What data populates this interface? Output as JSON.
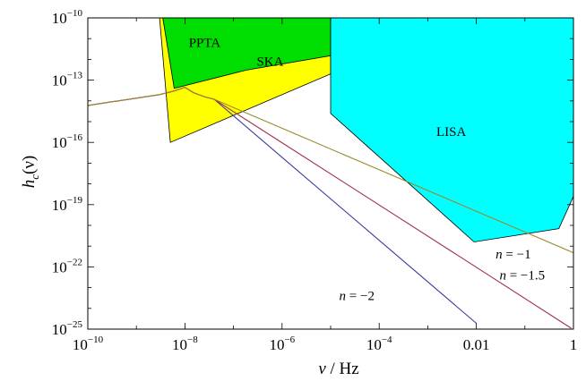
{
  "chart_data": {
    "type": "line",
    "xlabel": {
      "var": "ν",
      "sep": " / ",
      "unit": "Hz"
    },
    "ylabel": {
      "base": "h",
      "sub": "c",
      "arg": "(ν)"
    },
    "xscale": "log",
    "yscale": "log",
    "xlim": [
      1e-10,
      1
    ],
    "ylim": [
      1e-25,
      1e-10
    ],
    "grid": false,
    "legend": "none",
    "x_ticks": [
      {
        "value": 1e-10,
        "mantissa": "10",
        "exponent": "−10"
      },
      {
        "value": 1e-08,
        "mantissa": "10",
        "exponent": "−8"
      },
      {
        "value": 1e-06,
        "mantissa": "10",
        "exponent": "−6"
      },
      {
        "value": 0.0001,
        "mantissa": "10",
        "exponent": "−4"
      },
      {
        "value": 0.01,
        "plain": "0.01"
      },
      {
        "value": 1,
        "plain": "1"
      }
    ],
    "y_ticks": [
      {
        "value": 1e-10,
        "mantissa": "10",
        "exponent": "−10"
      },
      {
        "value": 1e-13,
        "mantissa": "10",
        "exponent": "−13"
      },
      {
        "value": 1e-16,
        "mantissa": "10",
        "exponent": "−16"
      },
      {
        "value": 1e-19,
        "mantissa": "10",
        "exponent": "−19"
      },
      {
        "value": 1e-22,
        "mantissa": "10",
        "exponent": "−22"
      },
      {
        "value": 1e-25,
        "mantissa": "10",
        "exponent": "−25"
      }
    ],
    "regions": [
      {
        "name": "SKA",
        "label": "SKA",
        "color": "#ffff00",
        "label_at": [
          3e-07,
          5e-13
        ],
        "polygon": [
          [
            3e-09,
            1e-10
          ],
          [
            1e-05,
            1e-10
          ],
          [
            1e-05,
            2e-13
          ],
          [
            5e-09,
            1e-16
          ]
        ]
      },
      {
        "name": "PPTA",
        "label": "PPTA",
        "color": "#00dd00",
        "label_at": [
          1.2e-08,
          4e-12
        ],
        "polygon": [
          [
            3.5e-09,
            1e-10
          ],
          [
            1e-05,
            1e-10
          ],
          [
            1e-05,
            1.5e-12
          ],
          [
            1.8e-07,
            3e-13
          ],
          [
            6e-09,
            4e-14
          ]
        ]
      },
      {
        "name": "LISA",
        "label": "LISA",
        "color": "#00ffff",
        "label_at": [
          0.0015,
          2e-16
        ],
        "polygon": [
          [
            1e-05,
            1e-10
          ],
          [
            1,
            1e-10
          ],
          [
            1,
            2.5e-19
          ],
          [
            0.5,
            7e-21
          ],
          [
            0.009,
            1.6e-21
          ],
          [
            1e-05,
            2.5e-15
          ]
        ]
      }
    ],
    "series": [
      {
        "label": "n = −2",
        "label_parts": {
          "var": "n",
          "op": " = ",
          "val": "−2"
        },
        "label_at": [
          1.5e-05,
          2.5e-24
        ],
        "color": "#3c3ca0",
        "x": [
          1e-10,
          3e-09,
          6e-09,
          1e-08,
          1.5e-08,
          2.5e-08,
          4e-08,
          1e-06,
          0.0001,
          0.01
        ],
        "y": [
          6e-15,
          2e-14,
          3e-14,
          4.5e-14,
          2.5e-14,
          1.6e-14,
          1.2e-14,
          1.9e-17,
          1.9e-21,
          1.9e-25
        ]
      },
      {
        "label": "n = −1.5",
        "label_parts": {
          "var": "n",
          "op": " = ",
          "val": "−1.5"
        },
        "label_at": [
          0.03,
          2.5e-23
        ],
        "color": "#a03050",
        "x": [
          1e-10,
          3e-09,
          6e-09,
          1e-08,
          1.5e-08,
          2.5e-08,
          4e-08,
          1e-06,
          0.0001,
          0.01,
          0.9
        ],
        "y": [
          6e-15,
          2e-14,
          3e-14,
          4.5e-14,
          2.5e-14,
          1.6e-14,
          1.2e-14,
          9.6e-17,
          9.6e-20,
          9.6e-23,
          1.1e-25
        ]
      },
      {
        "label": "n = −1",
        "label_parts": {
          "var": "n",
          "op": " = ",
          "val": "−1"
        },
        "label_at": [
          0.025,
          2.5e-22
        ],
        "color": "#9a8a30",
        "x": [
          1e-10,
          3e-09,
          6e-09,
          1e-08,
          1.5e-08,
          2.5e-08,
          4e-08,
          1e-06,
          0.0001,
          0.01,
          1
        ],
        "y": [
          6e-15,
          2e-14,
          3e-14,
          4.5e-14,
          2.5e-14,
          1.6e-14,
          1.2e-14,
          4.8e-16,
          4.8e-18,
          4.8e-20,
          4.8e-22
        ]
      }
    ]
  }
}
